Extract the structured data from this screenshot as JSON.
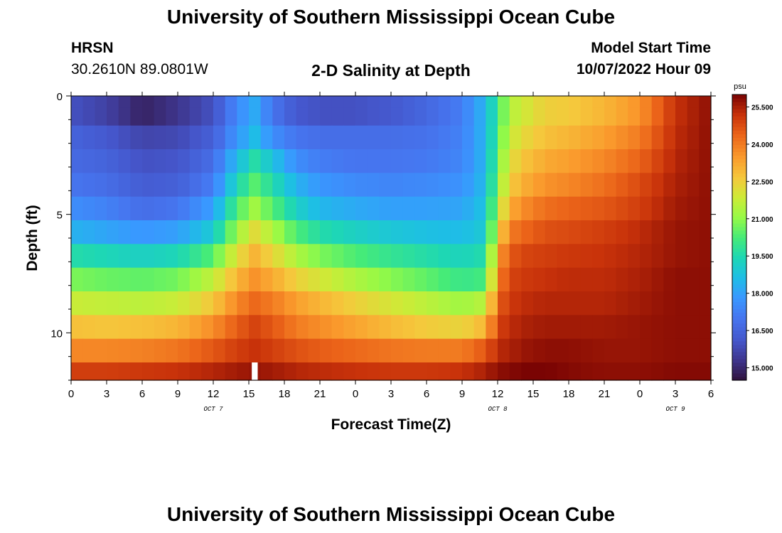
{
  "page": {
    "title": "University of Southern Mississippi Ocean Cube",
    "footer_title": "University of Southern Mississippi Ocean Cube",
    "station_name": "HRSN",
    "coordinates": "30.2610N  89.0801W",
    "subtitle": "2-D Salinity at Depth",
    "model_start_label": "Model Start Time",
    "model_start_value": "10/07/2022 Hour 09"
  },
  "chart_data": {
    "type": "heatmap",
    "title": "2-D Salinity at Depth",
    "xlabel": "Forecast Time(Z)",
    "ylabel": "Depth (ft)",
    "x_tick_labels": [
      "0",
      "3",
      "6",
      "9",
      "12",
      "15",
      "18",
      "21",
      "0",
      "3",
      "6",
      "9",
      "12",
      "15",
      "18",
      "21",
      "0",
      "3",
      "6"
    ],
    "x_hours": [
      0,
      3,
      6,
      9,
      12,
      15,
      18,
      21,
      24,
      27,
      30,
      33,
      36,
      39,
      42,
      45,
      48,
      51,
      54
    ],
    "xlim": [
      0,
      54
    ],
    "day_labels": [
      {
        "text": "OCT 7",
        "hour": 12
      },
      {
        "text": "OCT 8",
        "hour": 36
      },
      {
        "text": "OCT 9",
        "hour": 51
      }
    ],
    "y_tick_labels": [
      "0",
      "5",
      "10"
    ],
    "y_ticks": [
      0,
      5,
      10
    ],
    "ylim": [
      0,
      12
    ],
    "depth_levels": [
      0.25,
      0.75,
      1.75,
      2.75,
      3.75,
      4.75,
      5.75,
      6.75,
      7.75,
      8.75,
      9.75,
      10.75,
      11.75
    ],
    "colorbar": {
      "unit": "psu",
      "min": 14.5,
      "max": 26.0,
      "tick_values": [
        15.0,
        16.5,
        18.0,
        19.5,
        21.0,
        22.5,
        24.0,
        25.5
      ],
      "tick_labels": [
        "15.000",
        "16.500",
        "18.000",
        "19.500",
        "21.000",
        "22.500",
        "24.000",
        "25.500"
      ]
    },
    "time_nodes": [
      0,
      3,
      6,
      9,
      12,
      14,
      15.5,
      17,
      19,
      21,
      24,
      27,
      30,
      33,
      35,
      36,
      37,
      38.5,
      40,
      42,
      45,
      48,
      51,
      54
    ],
    "salinity": [
      [
        16.0,
        15.6,
        14.9,
        15.3,
        16.0,
        17.5,
        18.2,
        17.0,
        16.2,
        16.0,
        16.0,
        16.2,
        16.6,
        17.2,
        18.5,
        20.0,
        21.5,
        22.0,
        22.5,
        22.6,
        23.0,
        23.6,
        25.2,
        25.8
      ],
      [
        16.0,
        15.6,
        14.9,
        15.3,
        16.0,
        17.5,
        18.2,
        17.0,
        16.2,
        16.0,
        16.0,
        16.2,
        16.6,
        17.2,
        18.5,
        20.0,
        21.5,
        22.0,
        22.5,
        22.6,
        23.0,
        23.6,
        25.2,
        25.8
      ],
      [
        16.5,
        16.2,
        15.7,
        15.8,
        16.4,
        17.8,
        18.6,
        17.6,
        17.0,
        16.8,
        16.8,
        16.8,
        16.9,
        17.3,
        18.5,
        20.2,
        21.8,
        22.4,
        22.8,
        23.0,
        23.4,
        24.0,
        25.3,
        25.8
      ],
      [
        16.7,
        16.5,
        16.0,
        16.1,
        16.8,
        18.6,
        19.6,
        18.8,
        17.6,
        17.2,
        17.0,
        17.0,
        17.1,
        17.4,
        18.5,
        20.5,
        22.2,
        22.8,
        23.2,
        23.4,
        23.8,
        24.4,
        25.4,
        25.8
      ],
      [
        17.0,
        16.8,
        16.3,
        16.4,
        17.2,
        19.4,
        20.4,
        19.6,
        18.4,
        17.8,
        17.5,
        17.4,
        17.5,
        17.7,
        18.6,
        20.8,
        22.6,
        23.2,
        23.6,
        23.8,
        24.2,
        24.8,
        25.5,
        25.8
      ],
      [
        17.6,
        17.3,
        16.8,
        17.0,
        18.0,
        20.3,
        21.2,
        20.4,
        19.2,
        18.5,
        18.2,
        18.0,
        18.0,
        18.1,
        18.8,
        21.4,
        23.2,
        23.8,
        24.2,
        24.4,
        24.6,
        25.0,
        25.6,
        25.8
      ],
      [
        18.4,
        18.1,
        17.8,
        18.0,
        19.0,
        21.2,
        22.2,
        21.4,
        20.3,
        19.6,
        19.2,
        18.9,
        18.7,
        18.6,
        19.0,
        22.2,
        24.0,
        24.4,
        24.7,
        24.8,
        25.0,
        25.3,
        25.7,
        25.8
      ],
      [
        19.6,
        19.4,
        19.2,
        19.4,
        20.4,
        22.2,
        23.0,
        22.4,
        21.4,
        20.8,
        20.3,
        19.9,
        19.6,
        19.3,
        19.6,
        23.2,
        24.6,
        24.9,
        25.0,
        25.1,
        25.2,
        25.4,
        25.7,
        25.8
      ],
      [
        20.8,
        20.6,
        20.5,
        20.7,
        21.7,
        23.0,
        23.6,
        23.2,
        22.5,
        22.0,
        21.4,
        20.9,
        20.5,
        20.0,
        20.2,
        23.8,
        24.9,
        25.1,
        25.2,
        25.3,
        25.3,
        25.5,
        25.8,
        25.8
      ],
      [
        21.8,
        21.7,
        21.6,
        21.8,
        22.7,
        23.8,
        24.3,
        24.0,
        23.4,
        23.0,
        22.5,
        22.0,
        21.6,
        21.2,
        21.6,
        24.4,
        25.1,
        25.3,
        25.4,
        25.4,
        25.4,
        25.6,
        25.8,
        25.8
      ],
      [
        22.8,
        22.7,
        22.8,
        23.0,
        23.7,
        24.5,
        24.9,
        24.6,
        24.0,
        23.7,
        23.3,
        22.9,
        22.6,
        22.4,
        23.0,
        24.9,
        25.3,
        25.5,
        25.6,
        25.6,
        25.6,
        25.7,
        25.8,
        25.8
      ],
      [
        23.8,
        23.8,
        23.9,
        24.1,
        24.6,
        25.0,
        25.2,
        25.0,
        24.7,
        24.5,
        24.3,
        24.1,
        24.0,
        24.0,
        24.6,
        25.3,
        25.5,
        25.7,
        25.8,
        25.8,
        25.7,
        25.7,
        25.8,
        25.8
      ],
      [
        25.0,
        25.0,
        25.1,
        25.2,
        25.4,
        25.6,
        25.7,
        25.6,
        25.4,
        25.3,
        25.2,
        25.1,
        25.1,
        25.2,
        25.5,
        25.8,
        25.9,
        26.0,
        26.0,
        25.9,
        25.8,
        25.8,
        25.9,
        25.9
      ]
    ],
    "missing_cell": {
      "hour": 15.5,
      "depth": 11.75
    }
  }
}
